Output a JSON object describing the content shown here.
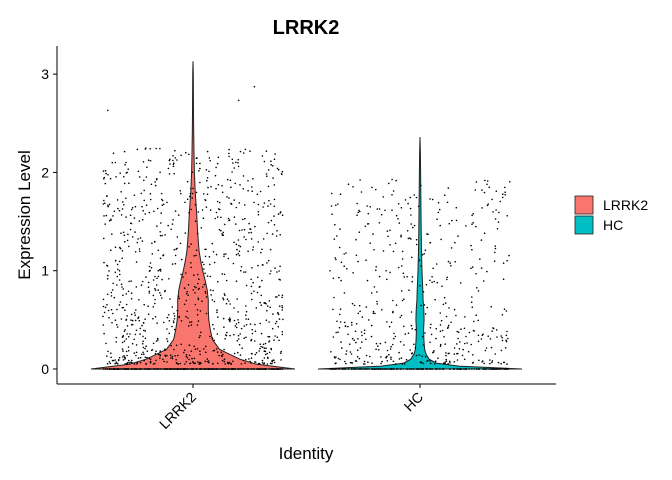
{
  "chart_data": {
    "type": "violin",
    "title": "LRRK2",
    "xlabel": "Identity",
    "ylabel": "Expression Level",
    "categories": [
      "LRRK2",
      "HC"
    ],
    "ylim": [
      -0.15,
      3.3
    ],
    "yticks": [
      0,
      1,
      2,
      3
    ],
    "grid": false,
    "legend_position": "right",
    "legend": [
      {
        "label": "LRRK2",
        "color": "#F8766D"
      },
      {
        "label": "HC",
        "color": "#00BFC4"
      }
    ],
    "series": [
      {
        "category": "LRRK2",
        "color": "#F8766D",
        "max": 3.13,
        "density": [
          [
            0,
            1.0
          ],
          [
            0.05,
            0.62
          ],
          [
            0.1,
            0.46
          ],
          [
            0.15,
            0.36
          ],
          [
            0.2,
            0.26
          ],
          [
            0.3,
            0.19
          ],
          [
            0.4,
            0.17
          ],
          [
            0.5,
            0.155
          ],
          [
            0.6,
            0.15
          ],
          [
            0.7,
            0.15
          ],
          [
            0.8,
            0.14
          ],
          [
            0.9,
            0.12
          ],
          [
            1.0,
            0.095
          ],
          [
            1.1,
            0.075
          ],
          [
            1.2,
            0.06
          ],
          [
            1.3,
            0.052
          ],
          [
            1.4,
            0.045
          ],
          [
            1.5,
            0.04
          ],
          [
            1.6,
            0.035
          ],
          [
            1.7,
            0.028
          ],
          [
            1.8,
            0.022
          ],
          [
            1.9,
            0.018
          ],
          [
            2.0,
            0.014
          ],
          [
            2.2,
            0.01
          ],
          [
            2.4,
            0.007
          ],
          [
            2.6,
            0.005
          ],
          [
            2.8,
            0.004
          ],
          [
            3.0,
            0.003
          ],
          [
            3.13,
            0.0
          ]
        ]
      },
      {
        "category": "HC",
        "color": "#00BFC4",
        "max": 2.36,
        "density": [
          [
            0,
            1.0
          ],
          [
            0.03,
            0.38
          ],
          [
            0.06,
            0.16
          ],
          [
            0.1,
            0.09
          ],
          [
            0.15,
            0.06
          ],
          [
            0.2,
            0.045
          ],
          [
            0.3,
            0.038
          ],
          [
            0.4,
            0.035
          ],
          [
            0.5,
            0.04
          ],
          [
            0.6,
            0.037
          ],
          [
            0.7,
            0.03
          ],
          [
            0.8,
            0.027
          ],
          [
            0.9,
            0.024
          ],
          [
            1.0,
            0.02
          ],
          [
            1.2,
            0.015
          ],
          [
            1.4,
            0.012
          ],
          [
            1.6,
            0.01
          ],
          [
            1.8,
            0.008
          ],
          [
            2.0,
            0.006
          ],
          [
            2.2,
            0.004
          ],
          [
            2.36,
            0.0
          ]
        ]
      }
    ]
  }
}
